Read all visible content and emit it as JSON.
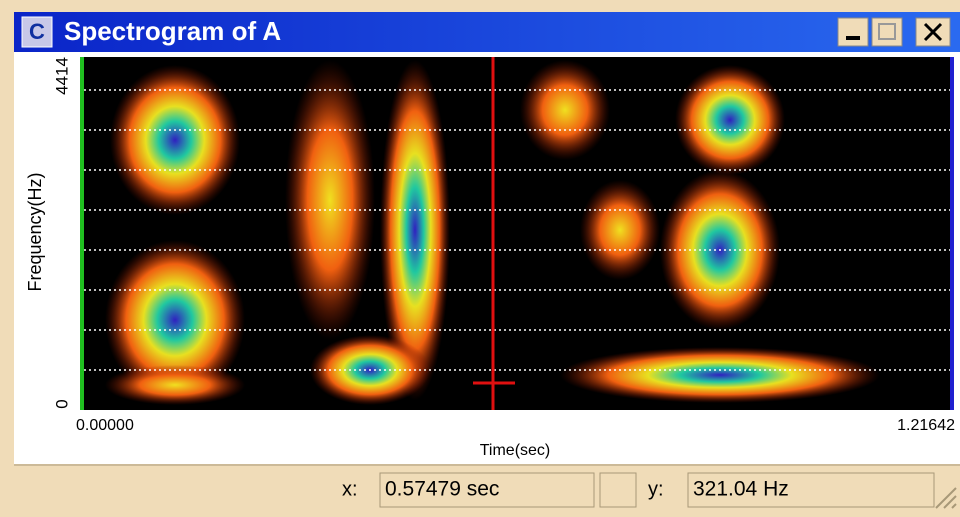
{
  "window": {
    "icon": "C",
    "title": "Spectrogram of A"
  },
  "plot": {
    "y_label": "Frequency(Hz)",
    "y_top": "4414",
    "y_bottom": "0",
    "x_left": "0.00000",
    "x_right": "1.21642",
    "x_label": "Time(sec)"
  },
  "status": {
    "x_label": "x:",
    "x_value": "0.57479 sec",
    "y_label": "y:",
    "y_value": "321.04 Hz"
  }
}
